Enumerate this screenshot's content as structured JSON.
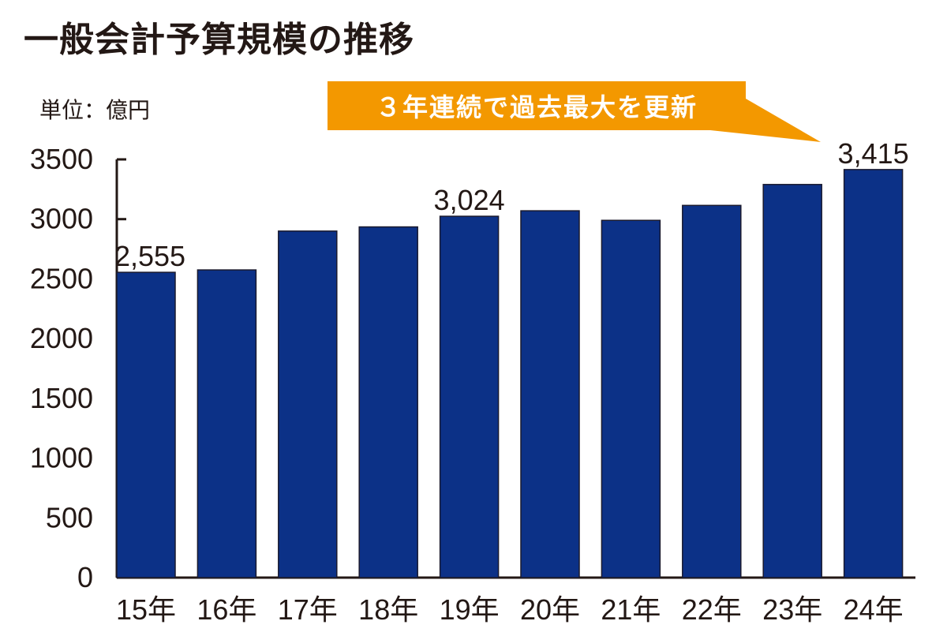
{
  "chart_data": {
    "type": "bar",
    "title": "一般会計予算規模の推移",
    "unit_label": "単位：億円",
    "annotation": "３年連続で過去最大を更新",
    "categories": [
      "15年",
      "16年",
      "17年",
      "18年",
      "19年",
      "20年",
      "21年",
      "22年",
      "23年",
      "24年"
    ],
    "values": [
      2555,
      2575,
      2900,
      2935,
      3024,
      3070,
      2990,
      3115,
      3290,
      3415
    ],
    "data_labels": {
      "0": "2,555",
      "4": "3,024",
      "9": "3,415"
    },
    "ylim": [
      0,
      3500
    ],
    "yticks": [
      0,
      500,
      1000,
      1500,
      2000,
      2500,
      3000,
      3500
    ],
    "grid": false,
    "colors": {
      "bar": "#0c3187",
      "annotation": "#f39800"
    }
  }
}
